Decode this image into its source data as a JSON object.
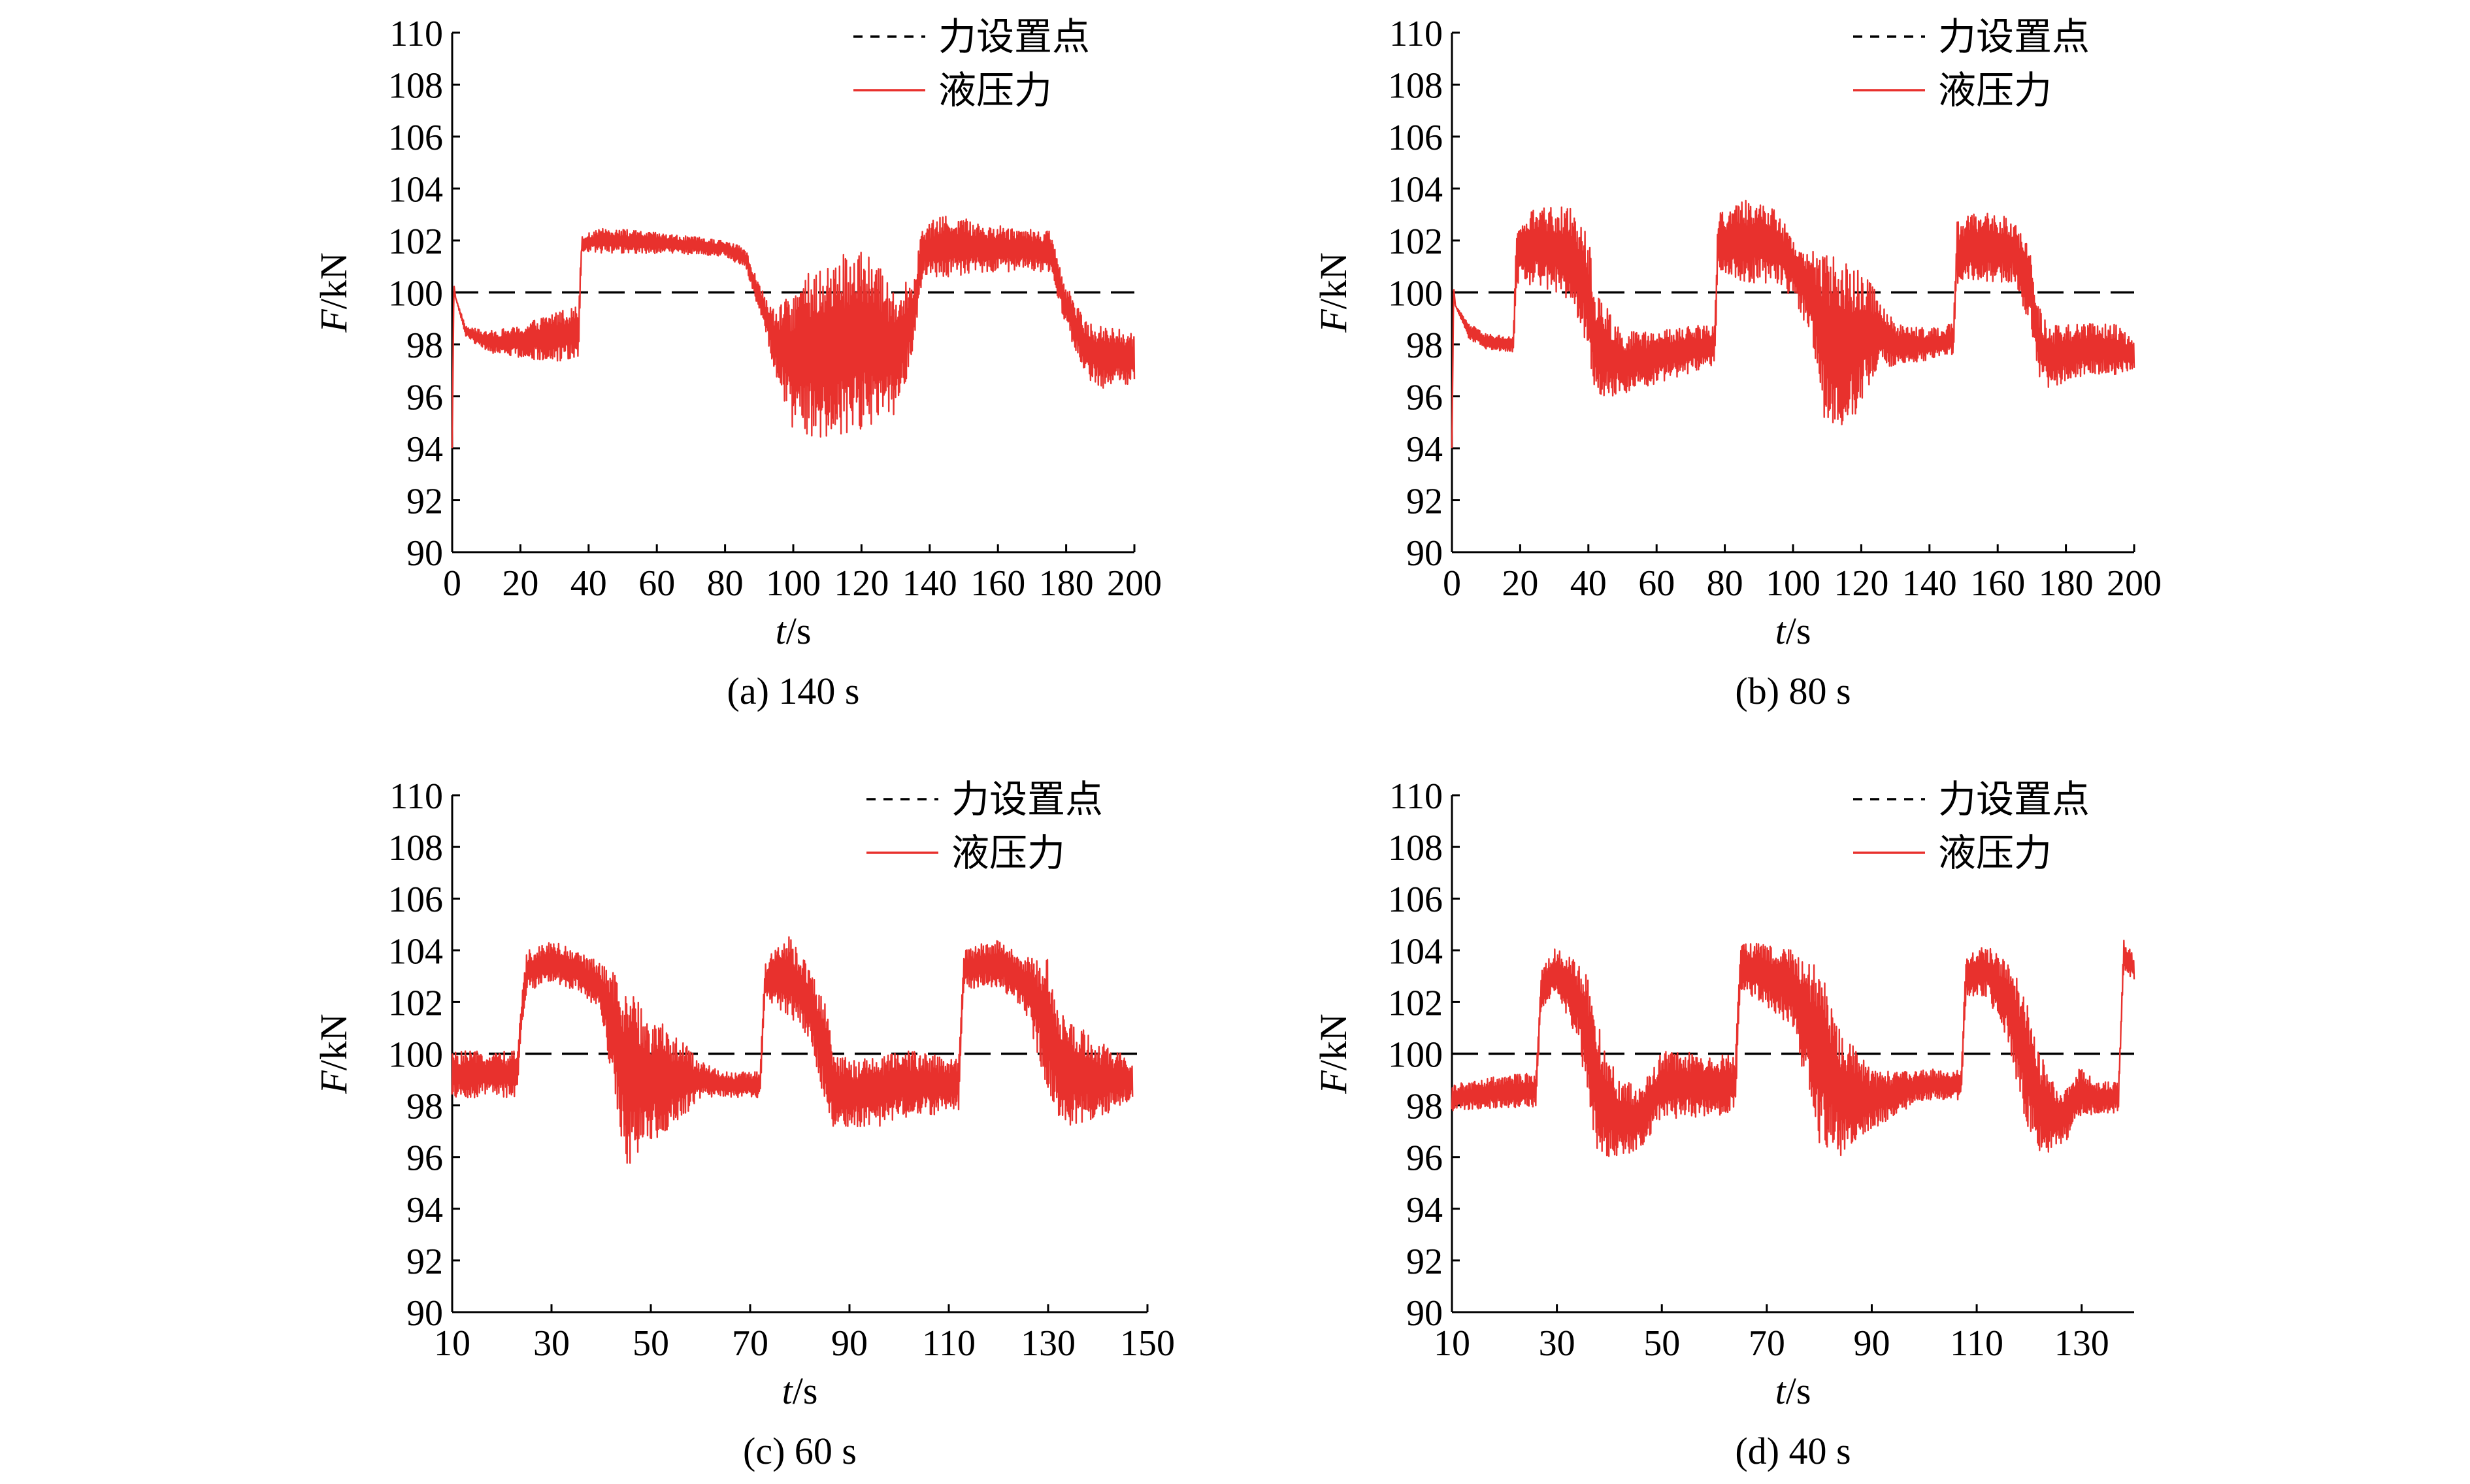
{
  "chart_data": [
    {
      "type": "line",
      "caption": "(a) 140 s",
      "xlabel_var": "t",
      "xlabel_unit": "/s",
      "ylabel_var": "F",
      "ylabel_unit": "/kN",
      "xlim": [
        0,
        200
      ],
      "ylim": [
        90,
        110
      ],
      "xticks": [
        0,
        20,
        40,
        60,
        80,
        100,
        120,
        140,
        160,
        180,
        200
      ],
      "yticks": [
        90,
        92,
        94,
        96,
        98,
        100,
        102,
        104,
        106,
        108,
        110
      ],
      "legend_position": "top-right",
      "grid": false,
      "series": [
        {
          "name": "力设置点",
          "style": "dashed",
          "color": "#000000",
          "x": [
            0,
            200
          ],
          "y": [
            100,
            100
          ],
          "noise": [
            0,
            0
          ]
        },
        {
          "name": "液压力",
          "style": "solid",
          "color": "#e8312d",
          "x": [
            0,
            0.5,
            1,
            4,
            10,
            20,
            30,
            37,
            38,
            45,
            60,
            80,
            86,
            90,
            95,
            100,
            110,
            120,
            130,
            135,
            138,
            145,
            160,
            175,
            180,
            185,
            190,
            200
          ],
          "y": [
            94,
            100.3,
            99.8,
            98.5,
            98.1,
            98.1,
            98.3,
            98.5,
            101.9,
            102.0,
            101.9,
            101.7,
            101.3,
            99.8,
            98.0,
            97.5,
            97.8,
            98.2,
            97.8,
            99.0,
            101.6,
            101.8,
            101.7,
            101.6,
            99.5,
            98.0,
            97.5,
            97.5
          ],
          "noise": [
            0,
            0,
            0,
            0.2,
            0.4,
            0.6,
            1.0,
            1.0,
            0.3,
            0.5,
            0.4,
            0.3,
            0.4,
            0.5,
            1.2,
            2.8,
            3.5,
            3.5,
            2.5,
            1.5,
            1.0,
            1.2,
            0.9,
            0.8,
            0.8,
            1.2,
            1.2,
            1.0
          ]
        }
      ]
    },
    {
      "type": "line",
      "caption": "(b) 80 s",
      "xlabel_var": "t",
      "xlabel_unit": "/s",
      "ylabel_var": "F",
      "ylabel_unit": "/kN",
      "xlim": [
        0,
        200
      ],
      "ylim": [
        90,
        110
      ],
      "xticks": [
        0,
        20,
        40,
        60,
        80,
        100,
        120,
        140,
        160,
        180,
        200
      ],
      "yticks": [
        90,
        92,
        94,
        96,
        98,
        100,
        102,
        104,
        106,
        108,
        110
      ],
      "legend_position": "top-right",
      "grid": false,
      "series": [
        {
          "name": "力设置点",
          "style": "dashed",
          "color": "#000000",
          "x": [
            0,
            200
          ],
          "y": [
            100,
            100
          ],
          "noise": [
            0,
            0
          ]
        },
        {
          "name": "液压力",
          "style": "solid",
          "color": "#e8312d",
          "x": [
            0,
            0.5,
            1,
            5,
            10,
            18,
            19,
            25,
            35,
            40,
            42,
            50,
            60,
            70,
            77,
            78,
            85,
            95,
            100,
            105,
            110,
            115,
            120,
            125,
            130,
            140,
            147,
            148,
            155,
            165,
            170,
            172,
            175,
            185,
            195,
            200
          ],
          "y": [
            94,
            100.2,
            99.5,
            98.5,
            98.1,
            98.0,
            101.5,
            101.8,
            101.5,
            100.0,
            98.0,
            97.3,
            97.5,
            97.8,
            98.0,
            101.8,
            102.0,
            101.8,
            101.0,
            100.0,
            98.0,
            97.8,
            98.3,
            98.5,
            98.0,
            98.0,
            98.2,
            101.5,
            101.8,
            101.6,
            100.0,
            98.0,
            97.5,
            97.8,
            97.8,
            97.6
          ],
          "noise": [
            0,
            0,
            0,
            0.3,
            0.3,
            0.3,
            1.2,
            1.5,
            1.8,
            2.2,
            2.2,
            1.2,
            1.0,
            0.9,
            0.8,
            1.2,
            1.6,
            1.5,
            1.2,
            1.6,
            3.5,
            3.5,
            2.5,
            1.5,
            0.8,
            0.6,
            0.6,
            1.2,
            1.4,
            1.2,
            1.5,
            1.5,
            1.2,
            1.0,
            1.0,
            0.6
          ]
        }
      ]
    },
    {
      "type": "line",
      "caption": "(c) 60 s",
      "xlabel_var": "t",
      "xlabel_unit": "/s",
      "ylabel_var": "F",
      "ylabel_unit": "/kN",
      "xlim": [
        10,
        150
      ],
      "ylim": [
        90,
        110
      ],
      "xticks": [
        10,
        30,
        50,
        70,
        90,
        110,
        130,
        150
      ],
      "yticks": [
        90,
        92,
        94,
        96,
        98,
        100,
        102,
        104,
        106,
        108,
        110
      ],
      "legend_position": "top-right",
      "grid": false,
      "series": [
        {
          "name": "力设置点",
          "style": "dashed",
          "color": "#000000",
          "x": [
            10,
            150
          ],
          "y": [
            100,
            100
          ],
          "noise": [
            0,
            0
          ]
        },
        {
          "name": "液压力",
          "style": "solid",
          "color": "#e8312d",
          "x": [
            10,
            15,
            23,
            24,
            25,
            30,
            35,
            40,
            43,
            45,
            50,
            55,
            60,
            65,
            68,
            72,
            73,
            78,
            82,
            85,
            87,
            90,
            95,
            100,
            103,
            112,
            113,
            120,
            125,
            130,
            133,
            140,
            147
          ],
          "y": [
            99.2,
            99.2,
            99.2,
            101.5,
            103.2,
            103.6,
            103.2,
            102.5,
            100.5,
            99.0,
            99.0,
            99.0,
            99.0,
            98.8,
            98.8,
            98.8,
            102.8,
            103.0,
            102.0,
            100.0,
            98.5,
            98.5,
            98.5,
            98.8,
            98.8,
            98.8,
            103.3,
            103.5,
            102.8,
            101.2,
            99.3,
            99.0,
            99.0
          ],
          "noise": [
            0.9,
            0.9,
            0.9,
            0.6,
            0.8,
            0.8,
            0.8,
            1.0,
            2.6,
            3.5,
            2.5,
            1.8,
            0.7,
            0.5,
            0.5,
            0.5,
            0.8,
            1.6,
            1.4,
            2.0,
            1.5,
            1.3,
            1.4,
            1.3,
            1.3,
            1.0,
            0.8,
            0.9,
            1.0,
            2.6,
            2.2,
            1.5,
            0.8
          ]
        }
      ]
    },
    {
      "type": "line",
      "caption": "(d) 40 s",
      "xlabel_var": "t",
      "xlabel_unit": "/s",
      "ylabel_var": "F",
      "ylabel_unit": "/kN",
      "xlim": [
        10,
        140
      ],
      "ylim": [
        90,
        110
      ],
      "xticks": [
        10,
        30,
        50,
        70,
        90,
        110,
        130
      ],
      "yticks": [
        90,
        92,
        94,
        96,
        98,
        100,
        102,
        104,
        106,
        108,
        110
      ],
      "legend_position": "top-right",
      "grid": false,
      "series": [
        {
          "name": "力设置点",
          "style": "dashed",
          "color": "#000000",
          "x": [
            10,
            140
          ],
          "y": [
            100,
            100
          ],
          "noise": [
            0,
            0
          ]
        },
        {
          "name": "液压力",
          "style": "solid",
          "color": "#e8312d",
          "x": [
            10,
            18,
            26,
            27,
            30,
            34,
            36,
            38,
            42,
            46,
            50,
            54,
            58,
            64,
            65,
            70,
            75,
            80,
            84,
            90,
            95,
            100,
            107,
            108,
            112,
            116,
            119,
            122,
            126,
            130,
            133,
            137,
            138,
            140
          ],
          "y": [
            98.3,
            98.5,
            98.6,
            102.5,
            103.2,
            102.0,
            100.5,
            98.5,
            97.5,
            97.5,
            98.8,
            98.8,
            98.8,
            98.8,
            103.5,
            103.0,
            102.5,
            100.0,
            98.5,
            98.2,
            98.5,
            98.8,
            98.8,
            103.0,
            103.2,
            102.0,
            100.0,
            98.0,
            97.5,
            98.5,
            98.3,
            98.3,
            103.8,
            103.3
          ],
          "noise": [
            0.5,
            0.6,
            0.7,
            0.7,
            1.0,
            1.5,
            2.5,
            2.5,
            1.5,
            1.2,
            1.3,
            1.3,
            1.3,
            1.1,
            1.0,
            1.2,
            1.5,
            3.5,
            2.5,
            1.2,
            0.8,
            0.6,
            0.6,
            0.8,
            1.0,
            1.5,
            2.5,
            2.0,
            1.2,
            1.0,
            0.6,
            0.6,
            0.6,
            0.5
          ]
        }
      ]
    }
  ]
}
